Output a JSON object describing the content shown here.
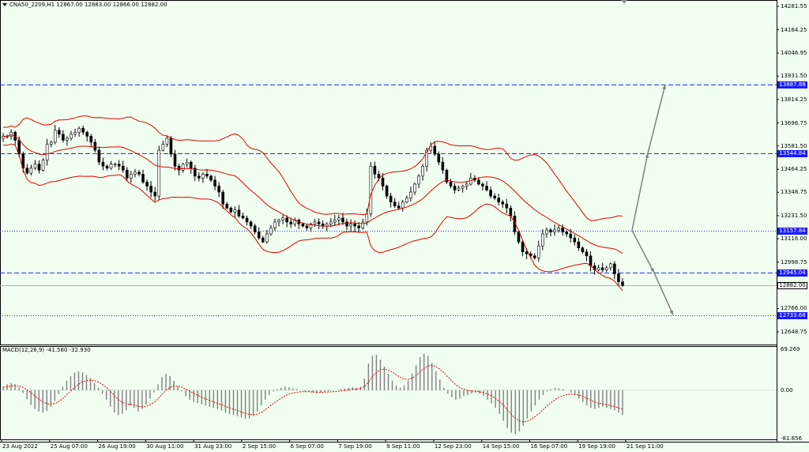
{
  "header": {
    "symbol": "CNA50_2209,H1",
    "ohlc": "12867.00 12883.00 12866.00 12882.00"
  },
  "macd_header": {
    "label": "MACD(12,26,9) -41.560 -32.930"
  },
  "price_axis": {
    "ticks": [
      "14281.55",
      "14164.25",
      "14046.95",
      "13931.50",
      "13814.25",
      "13696.75",
      "13581.50",
      "13464.25",
      "13348.75",
      "13231.50",
      "13116.00",
      "12998.75",
      "12766.00",
      "12648.75"
    ],
    "scale": {
      "top_value": 14281.55,
      "bottom_value": 12648.75
    }
  },
  "price_levels": {
    "values": [
      "13887.88",
      "13544.84",
      "13157.84",
      "12945.04",
      "12733.68"
    ],
    "styles": [
      "dashed",
      "dashed",
      "dotted",
      "dashed",
      "dotted"
    ],
    "current": "12882.00"
  },
  "macd_axis": {
    "ticks": [
      "69.269",
      "0.00",
      "-81.856"
    ],
    "scale": {
      "top_value": 69.269,
      "bottom_value": -81.856
    }
  },
  "time_axis": {
    "labels": [
      "23 Aug 2022",
      "25 Aug 07:00",
      "26 Aug 19:00",
      "30 Aug 11:00",
      "31 Aug 23:00",
      "2 Sep 15:00",
      "6 Sep 07:00",
      "7 Sep 19:00",
      "9 Sep 11:00",
      "12 Sep 23:00",
      "14 Sep 15:00",
      "16 Sep 07:00",
      "19 Sep 19:00",
      "21 Sep 11:00"
    ]
  },
  "series": {
    "close": [
      13630,
      13630,
      13650,
      13610,
      13540,
      13470,
      13445,
      13470,
      13490,
      13460,
      13510,
      13590,
      13600,
      13660,
      13640,
      13610,
      13620,
      13640,
      13650,
      13670,
      13650,
      13630,
      13600,
      13560,
      13500,
      13480,
      13470,
      13490,
      13490,
      13480,
      13460,
      13420,
      13440,
      13450,
      13440,
      13400,
      13380,
      13350,
      13330,
      13560,
      13590,
      13620,
      13540,
      13480,
      13460,
      13490,
      13500,
      13470,
      13430,
      13420,
      13440,
      13430,
      13410,
      13380,
      13350,
      13290,
      13270,
      13250,
      13260,
      13230,
      13220,
      13200,
      13180,
      13150,
      13120,
      13100,
      13140,
      13170,
      13200,
      13210,
      13220,
      13200,
      13190,
      13210,
      13190,
      13180,
      13170,
      13190,
      13200,
      13190,
      13180,
      13190,
      13200,
      13210,
      13220,
      13200,
      13180,
      13190,
      13180,
      13170,
      13200,
      13240,
      13480,
      13440,
      13420,
      13380,
      13330,
      13300,
      13280,
      13270,
      13300,
      13320,
      13350,
      13390,
      13430,
      13480,
      13560,
      13580,
      13540,
      13500,
      13460,
      13400,
      13380,
      13360,
      13370,
      13380,
      13390,
      13420,
      13410,
      13390,
      13380,
      13360,
      13330,
      13320,
      13300,
      13290,
      13270,
      13230,
      13150,
      13100,
      13050,
      13040,
      13030,
      13020,
      13080,
      13140,
      13160,
      13150,
      13160,
      13170,
      13150,
      13140,
      13120,
      13100,
      13070,
      13050,
      13030,
      12980,
      12960,
      12970,
      12960,
      12970,
      12990,
      12940,
      12900,
      12882
    ]
  },
  "macd": {
    "hist": [
      5,
      10,
      12,
      10,
      5,
      -5,
      -15,
      -25,
      -32,
      -36,
      -38,
      -35,
      -28,
      -18,
      -6,
      6,
      16,
      24,
      30,
      32,
      30,
      26,
      20,
      12,
      4,
      -6,
      -16,
      -28,
      -38,
      -42,
      -40,
      -34,
      -26,
      -30,
      -36,
      -32,
      -24,
      -14,
      -4,
      10,
      22,
      28,
      24,
      16,
      6,
      -2,
      -10,
      -16,
      -20,
      -22,
      -24,
      -26,
      -28,
      -30,
      -32,
      -34,
      -38,
      -40,
      -42,
      -44,
      -46,
      -48,
      -48,
      -44,
      -36,
      -26,
      -16,
      -8,
      -2,
      2,
      4,
      6,
      5,
      3,
      2,
      0,
      -2,
      -3,
      -4,
      -5,
      -4,
      -3,
      -2,
      -1,
      0,
      2,
      3,
      4,
      5,
      4,
      6,
      20,
      45,
      58,
      60,
      52,
      40,
      28,
      16,
      8,
      4,
      8,
      16,
      28,
      42,
      56,
      62,
      58,
      46,
      32,
      18,
      4,
      -6,
      -12,
      -16,
      -14,
      -10,
      -8,
      -6,
      -4,
      -6,
      -10,
      -16,
      -22,
      -30,
      -40,
      -52,
      -64,
      -72,
      -74,
      -70,
      -60,
      -48,
      -36,
      -26,
      -16,
      -8,
      -2,
      2,
      4,
      3,
      2,
      0,
      -4,
      -8,
      -14,
      -20,
      -26,
      -30,
      -32,
      -30,
      -28,
      -30,
      -32,
      -34,
      -38,
      -42
    ]
  },
  "colors": {
    "background": "#f0fff0",
    "bollinger": "#e00000",
    "candle": "#000000",
    "level_line": "#2030ff",
    "projection": "#808080",
    "macd_hist": "#808080",
    "macd_signal": "#e00000"
  }
}
